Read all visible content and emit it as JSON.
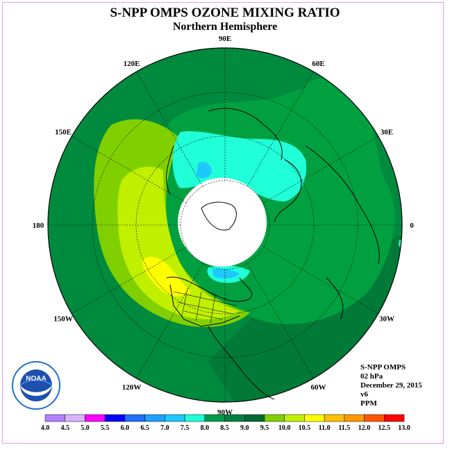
{
  "title": "S-NPP OMPS OZONE MIXING RATIO",
  "subtitle": "Northern Hemisphere",
  "info": {
    "instrument": "S-NPP OMPS",
    "level": "02 hPa",
    "date": "December 29, 2015",
    "version": "v6",
    "units": "PPM"
  },
  "longitude_labels": [
    "90E",
    "60E",
    "30E",
    "0",
    "30W",
    "60W",
    "90W",
    "120W",
    "150W",
    "180",
    "150E",
    "120E"
  ],
  "colorbar": {
    "ticks": [
      "4.0",
      "4.5",
      "5.0",
      "5.5",
      "6.0",
      "6.5",
      "7.0",
      "7.5",
      "8.0",
      "8.5",
      "9.0",
      "9.5",
      "10.0",
      "10.5",
      "11.0",
      "11.5",
      "12.0",
      "12.5",
      "13.0"
    ],
    "colors": [
      "#b380ff",
      "#d9b3ff",
      "#ff00ff",
      "#0000ff",
      "#1e6fff",
      "#1ea0ff",
      "#1ec8ff",
      "#20ffd8",
      "#009a4a",
      "#008040",
      "#006a33",
      "#80d000",
      "#c0f000",
      "#ffff00",
      "#ffc000",
      "#ff9900",
      "#ff5500",
      "#ff0000",
      "#8b5a2b"
    ]
  },
  "logo": {
    "text": "NOAA",
    "ring_text": "NATIONAL OCEANIC AND ATMOSPHERIC ADMINISTRATION · U.S. DEPARTMENT OF COMMERCE"
  },
  "colors": {
    "ocean_dark": "#008a3e",
    "mid": "#00a040",
    "cyan": "#20ffd8",
    "no_data": "#ffffff"
  }
}
